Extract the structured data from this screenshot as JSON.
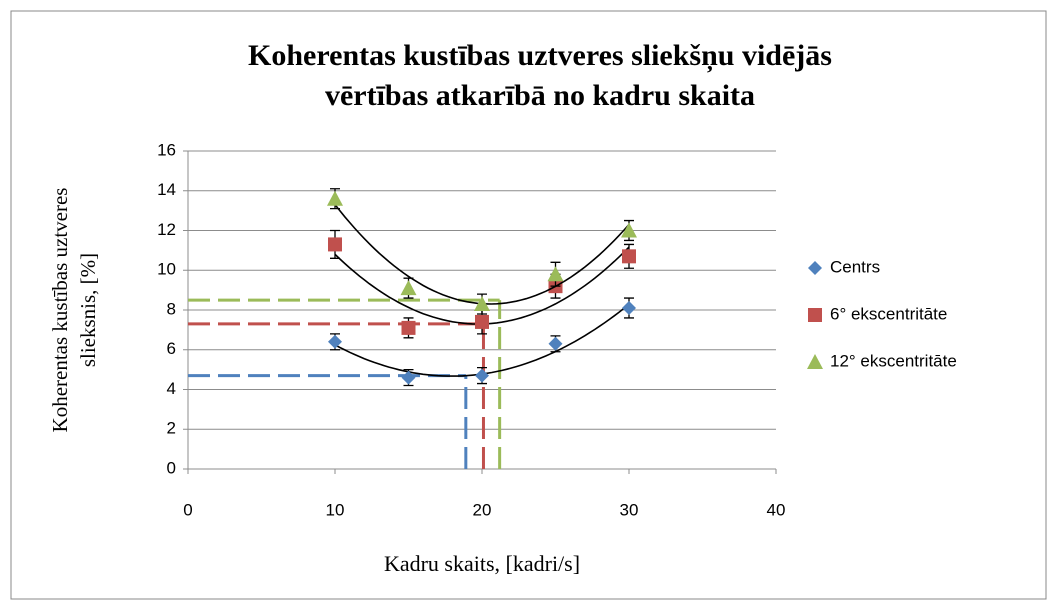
{
  "chart_data": {
    "type": "scatter",
    "title": [
      "Koherentas kustības uztveres sliekšņu vidējās",
      "vērtības atkarībā no kadru skaita"
    ],
    "x_label": "Kadru skaits, [kadri/s]",
    "y_label": [
      "Koherentas kustības uztveres",
      "slieksnis, [%]"
    ],
    "x": [
      10,
      15,
      20,
      25,
      30
    ],
    "series": [
      {
        "name": "Centrs",
        "color": "#4f81bd",
        "marker": "diamond",
        "values": [
          6.4,
          4.6,
          4.7,
          6.3,
          8.1
        ],
        "errors": [
          0.4,
          0.4,
          0.4,
          0.4,
          0.5
        ]
      },
      {
        "name": "6° ekscentritāte",
        "color": "#c0504d",
        "marker": "square",
        "values": [
          11.3,
          7.1,
          7.4,
          9.2,
          10.7
        ],
        "errors": [
          0.7,
          0.5,
          0.6,
          0.6,
          0.6
        ]
      },
      {
        "name": "12° ekscentritāte",
        "color": "#9bbb59",
        "marker": "triangle",
        "values": [
          13.6,
          9.1,
          8.3,
          9.8,
          12.0
        ],
        "errors": [
          0.5,
          0.5,
          0.5,
          0.6,
          0.5
        ]
      }
    ],
    "trendline": "polynomial-2",
    "reference_lines": [
      {
        "x": 18.9,
        "y": 4.7,
        "color": "#4f81bd"
      },
      {
        "x": 20.1,
        "y": 7.3,
        "color": "#c0504d"
      },
      {
        "x": 21.2,
        "y": 8.5,
        "color": "#9bbb59"
      }
    ],
    "xlim": [
      0,
      40
    ],
    "xticks": [
      0,
      10,
      20,
      30,
      40
    ],
    "ylim": [
      0,
      16
    ],
    "yticks": [
      0,
      2,
      4,
      6,
      8,
      10,
      12,
      14,
      16
    ],
    "grid": true,
    "legend": "right"
  }
}
